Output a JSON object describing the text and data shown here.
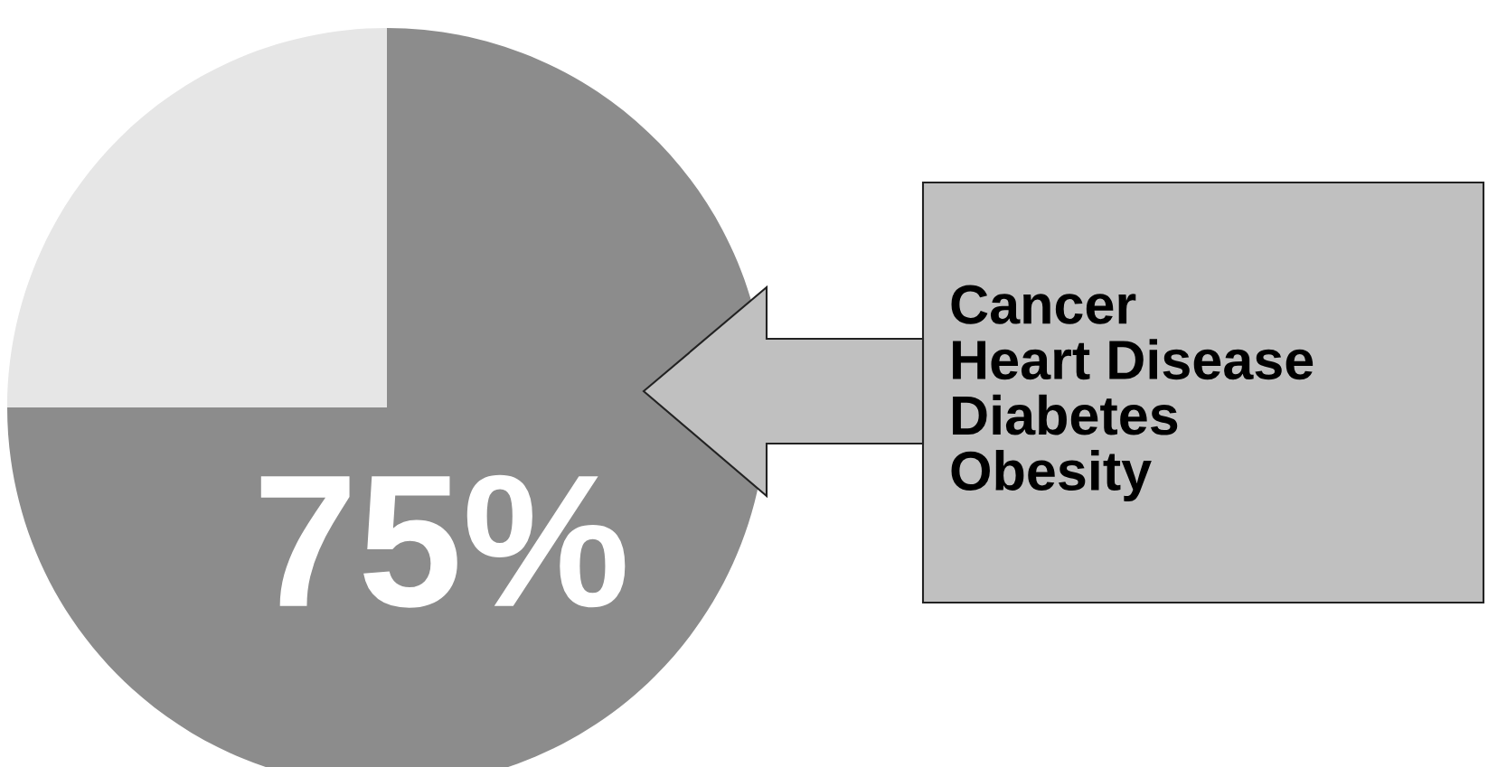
{
  "chart_data": {
    "type": "pie",
    "categories": [
      null,
      null
    ],
    "values": [
      75,
      25
    ],
    "colors": [
      "#8c8c8c",
      "#e6e6e6"
    ],
    "value_labels": [
      "75%",
      null
    ],
    "annotations": [
      "Cancer\nHeart Disease\nDiabetes\nObesity"
    ]
  }
}
